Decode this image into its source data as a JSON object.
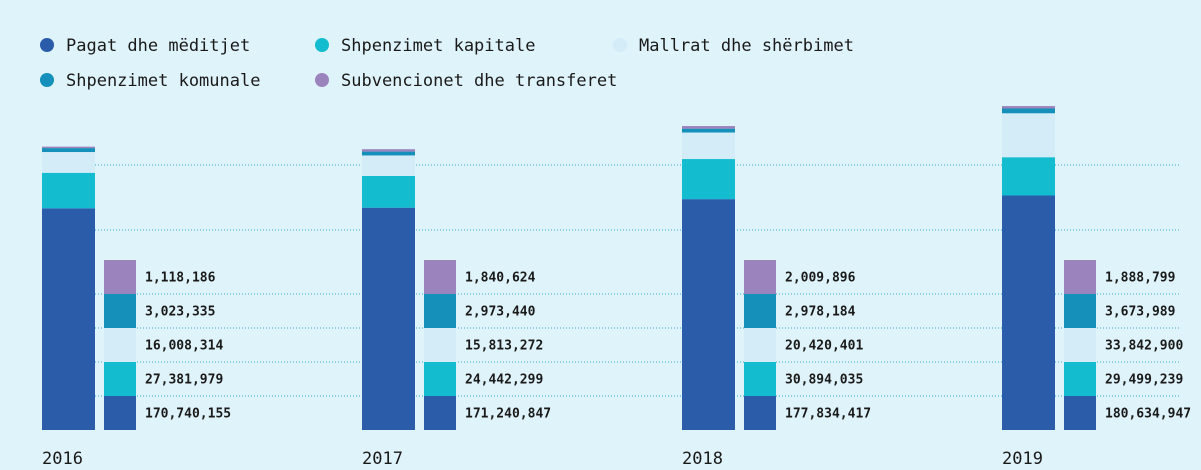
{
  "chart_data": {
    "type": "bar",
    "stacked": true,
    "categories": [
      "2016",
      "2017",
      "2018",
      "2019"
    ],
    "series": [
      {
        "name": "Pagat dhe mëditjet",
        "color": "#2a5caa",
        "values": [
          170740155,
          171240847,
          177834417,
          180634947
        ],
        "value_labels": [
          "170,740,155",
          "171,240,847",
          "177,834,417",
          "180,634,947"
        ]
      },
      {
        "name": "Shpenzimet kapitale",
        "color": "#13bccf",
        "values": [
          27381979,
          24442299,
          30894035,
          29499239
        ],
        "value_labels": [
          "27,381,979",
          "24,442,299",
          "30,894,035",
          "29,499,239"
        ]
      },
      {
        "name": "Mallrat dhe shërbimet",
        "color": "#d3ecf8",
        "values": [
          16008314,
          15813272,
          20420401,
          33842900
        ],
        "value_labels": [
          "16,008,314",
          "15,813,272",
          "20,420,401",
          "33,842,900"
        ]
      },
      {
        "name": "Shpenzimet komunale",
        "color": "#1490bb",
        "values": [
          3023335,
          2973440,
          2978184,
          3673989
        ],
        "value_labels": [
          "3,023,335",
          "2,973,440",
          "2,978,184",
          "3,673,989"
        ]
      },
      {
        "name": "Subvencionet dhe transferet",
        "color": "#9b84be",
        "values": [
          1118186,
          1840624,
          2009896,
          1888799
        ],
        "value_labels": [
          "1,118,186",
          "1,840,624",
          "2,009,896",
          "1,888,799"
        ]
      }
    ]
  }
}
